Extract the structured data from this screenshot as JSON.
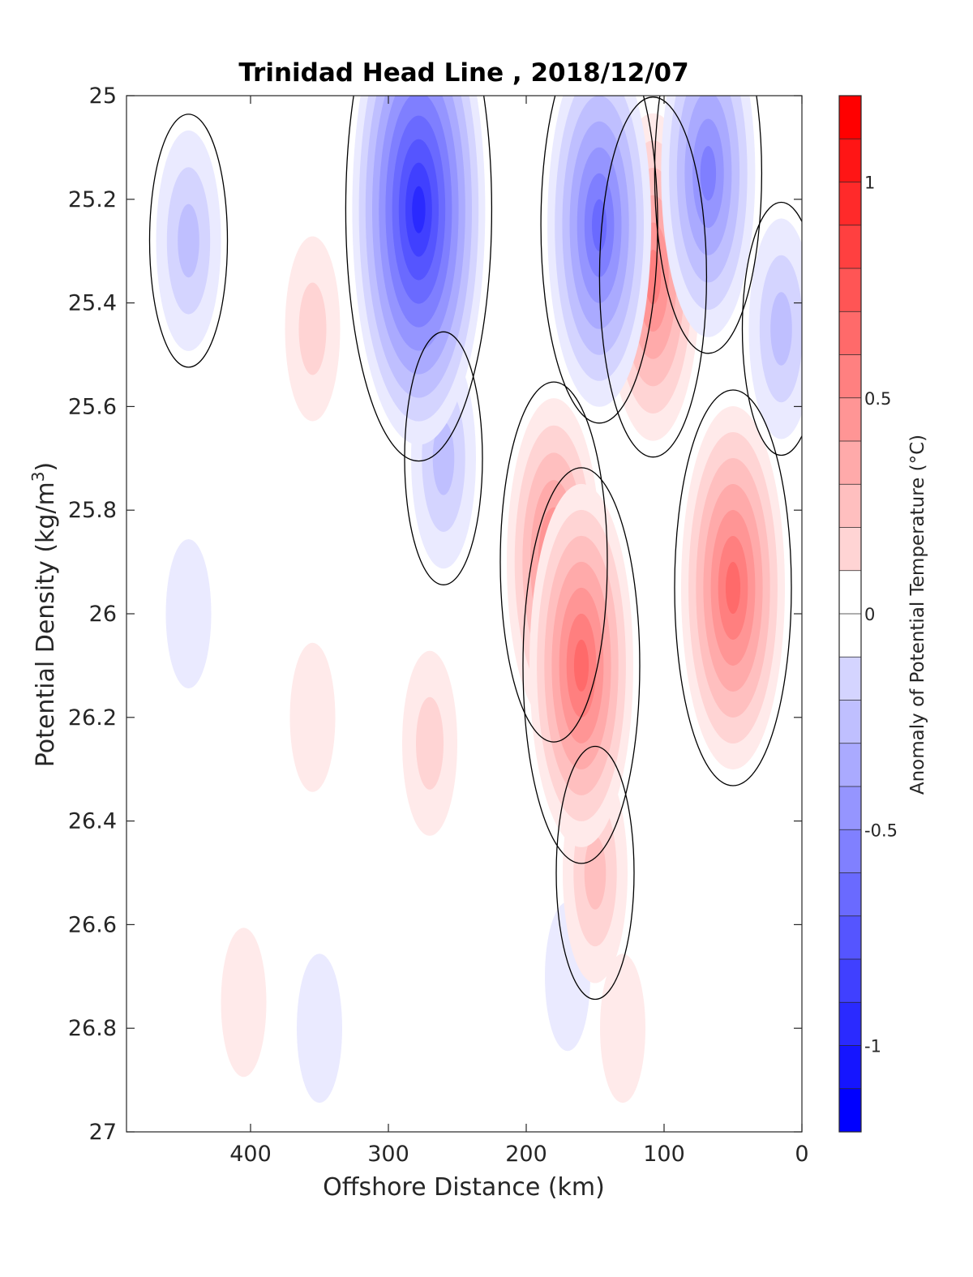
{
  "chart_data": {
    "type": "contour",
    "title": "Trinidad Head Line , 2018/12/07",
    "xlabel": "Offshore Distance (km)",
    "ylabel": "Potential Density (kg/m",
    "ylabel_sup": "3",
    "ylabel_end": ")",
    "xlim": [
      490,
      0
    ],
    "x_reversed": true,
    "ylim": [
      25,
      27
    ],
    "y_reversed": true,
    "xticks": [
      400,
      300,
      200,
      100,
      0
    ],
    "xtick_labels": [
      "400",
      "300",
      "200",
      "100",
      "0"
    ],
    "yticks": [
      25,
      25.2,
      25.4,
      25.6,
      25.8,
      26,
      26.2,
      26.4,
      26.6,
      26.8,
      27
    ],
    "ytick_labels": [
      "25",
      "25.2",
      "25.4",
      "25.6",
      "25.8",
      "26",
      "26.2",
      "26.4",
      "26.6",
      "26.8",
      "27"
    ],
    "colorbar": {
      "label": "Anomaly of Potential Temperature (°C)",
      "limits": [
        -1.2,
        1.2
      ],
      "levels": [
        -1.2,
        -1.1,
        -1.0,
        -0.9,
        -0.8,
        -0.7,
        -0.6,
        -0.5,
        -0.4,
        -0.3,
        -0.2,
        -0.1,
        0,
        0.1,
        0.2,
        0.3,
        0.4,
        0.5,
        0.6,
        0.7,
        0.8,
        0.9,
        1.0,
        1.1,
        1.2
      ],
      "ticks": [
        1,
        0.5,
        0,
        -0.5,
        -1
      ],
      "tick_labels": [
        "1",
        "0.5",
        "0",
        "-0.5",
        "-1"
      ],
      "colormap": "blue-white-red",
      "min_color": "#0000ff",
      "max_color": "#ff0000"
    },
    "zero_contour_color": "#000000",
    "features": [
      {
        "sign": "negative",
        "x": 445,
        "y": 25.28,
        "peak": -0.3
      },
      {
        "sign": "negative",
        "x": 445,
        "y": 26.0,
        "peak": -0.1
      },
      {
        "sign": "positive",
        "x": 355,
        "y": 25.45,
        "peak": 0.2
      },
      {
        "sign": "positive",
        "x": 355,
        "y": 26.2,
        "peak": 0.1
      },
      {
        "sign": "negative",
        "x": 278,
        "y": 25.22,
        "peak": -1.0
      },
      {
        "sign": "negative",
        "x": 260,
        "y": 25.7,
        "peak": -0.3
      },
      {
        "sign": "negative",
        "x": 147,
        "y": 25.25,
        "peak": -0.7
      },
      {
        "sign": "positive",
        "x": 108,
        "y": 25.35,
        "peak": 0.6
      },
      {
        "sign": "negative",
        "x": 68,
        "y": 25.15,
        "peak": -0.6
      },
      {
        "sign": "negative",
        "x": 15,
        "y": 25.45,
        "peak": -0.3
      },
      {
        "sign": "positive",
        "x": 160,
        "y": 26.1,
        "peak": 0.7
      },
      {
        "sign": "positive",
        "x": 180,
        "y": 25.9,
        "peak": 0.6
      },
      {
        "sign": "positive",
        "x": 50,
        "y": 25.95,
        "peak": 0.7
      },
      {
        "sign": "positive",
        "x": 150,
        "y": 26.5,
        "peak": 0.3
      },
      {
        "sign": "positive",
        "x": 270,
        "y": 26.25,
        "peak": 0.2
      },
      {
        "sign": "positive",
        "x": 405,
        "y": 26.75,
        "peak": 0.1
      },
      {
        "sign": "negative",
        "x": 350,
        "y": 26.8,
        "peak": -0.1
      },
      {
        "sign": "negative",
        "x": 170,
        "y": 26.7,
        "peak": -0.1
      },
      {
        "sign": "positive",
        "x": 130,
        "y": 26.8,
        "peak": 0.1
      }
    ]
  }
}
